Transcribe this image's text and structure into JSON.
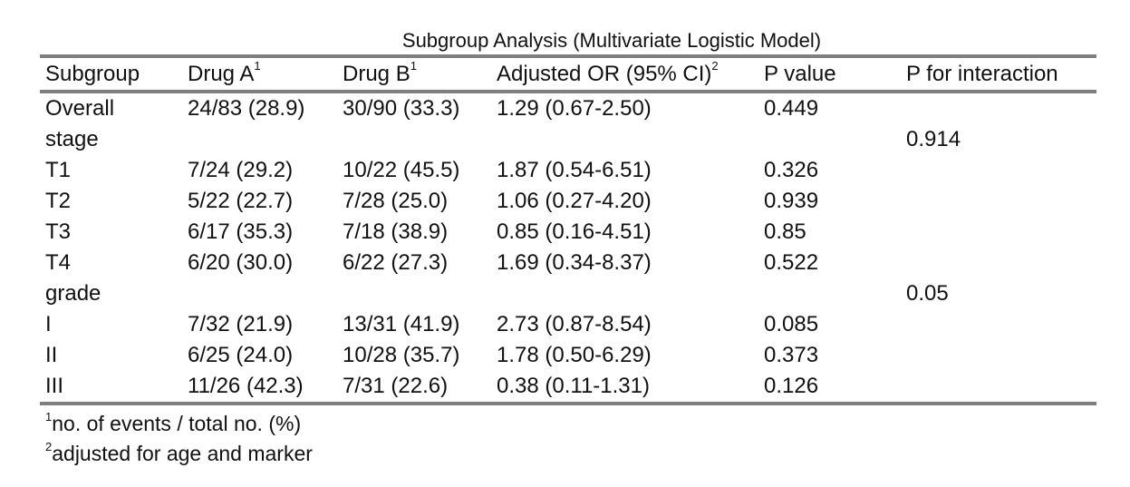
{
  "table": {
    "title": "Subgroup Analysis (Multivariate Logistic Model)",
    "headers": [
      {
        "label": "Subgroup",
        "sup": ""
      },
      {
        "label": "Drug A",
        "sup": "1"
      },
      {
        "label": "Drug B",
        "sup": "1"
      },
      {
        "label": "Adjusted OR (95% CI)",
        "sup": "2"
      },
      {
        "label": "P value",
        "sup": ""
      },
      {
        "label": "P for interaction",
        "sup": ""
      }
    ],
    "rows": [
      [
        "Overall",
        "24/83 (28.9)",
        "30/90 (33.3)",
        "1.29 (0.67-2.50)",
        "0.449",
        ""
      ],
      [
        "stage",
        "",
        "",
        "",
        "",
        "0.914"
      ],
      [
        "T1",
        "7/24 (29.2)",
        "10/22 (45.5)",
        "1.87 (0.54-6.51)",
        "0.326",
        ""
      ],
      [
        "T2",
        "5/22 (22.7)",
        "7/28 (25.0)",
        "1.06 (0.27-4.20)",
        "0.939",
        ""
      ],
      [
        "T3",
        "6/17 (35.3)",
        "7/18 (38.9)",
        "0.85 (0.16-4.51)",
        "0.85",
        ""
      ],
      [
        "T4",
        "6/20 (30.0)",
        "6/22 (27.3)",
        "1.69 (0.34-8.37)",
        "0.522",
        ""
      ],
      [
        "grade",
        "",
        "",
        "",
        "",
        "0.05"
      ],
      [
        "I",
        "7/32 (21.9)",
        "13/31 (41.9)",
        "2.73 (0.87-8.54)",
        "0.085",
        ""
      ],
      [
        "II",
        "6/25 (24.0)",
        "10/28 (35.7)",
        "1.78 (0.50-6.29)",
        "0.373",
        ""
      ],
      [
        "III",
        "11/26 (42.3)",
        "7/31 (22.6)",
        "0.38 (0.11-1.31)",
        "0.126",
        ""
      ]
    ],
    "footnotes": [
      {
        "mark": "1",
        "text": "no. of events / total no. (%)"
      },
      {
        "mark": "2",
        "text": "adjusted for age and marker"
      }
    ],
    "rule_color": "#7f7f7f"
  }
}
